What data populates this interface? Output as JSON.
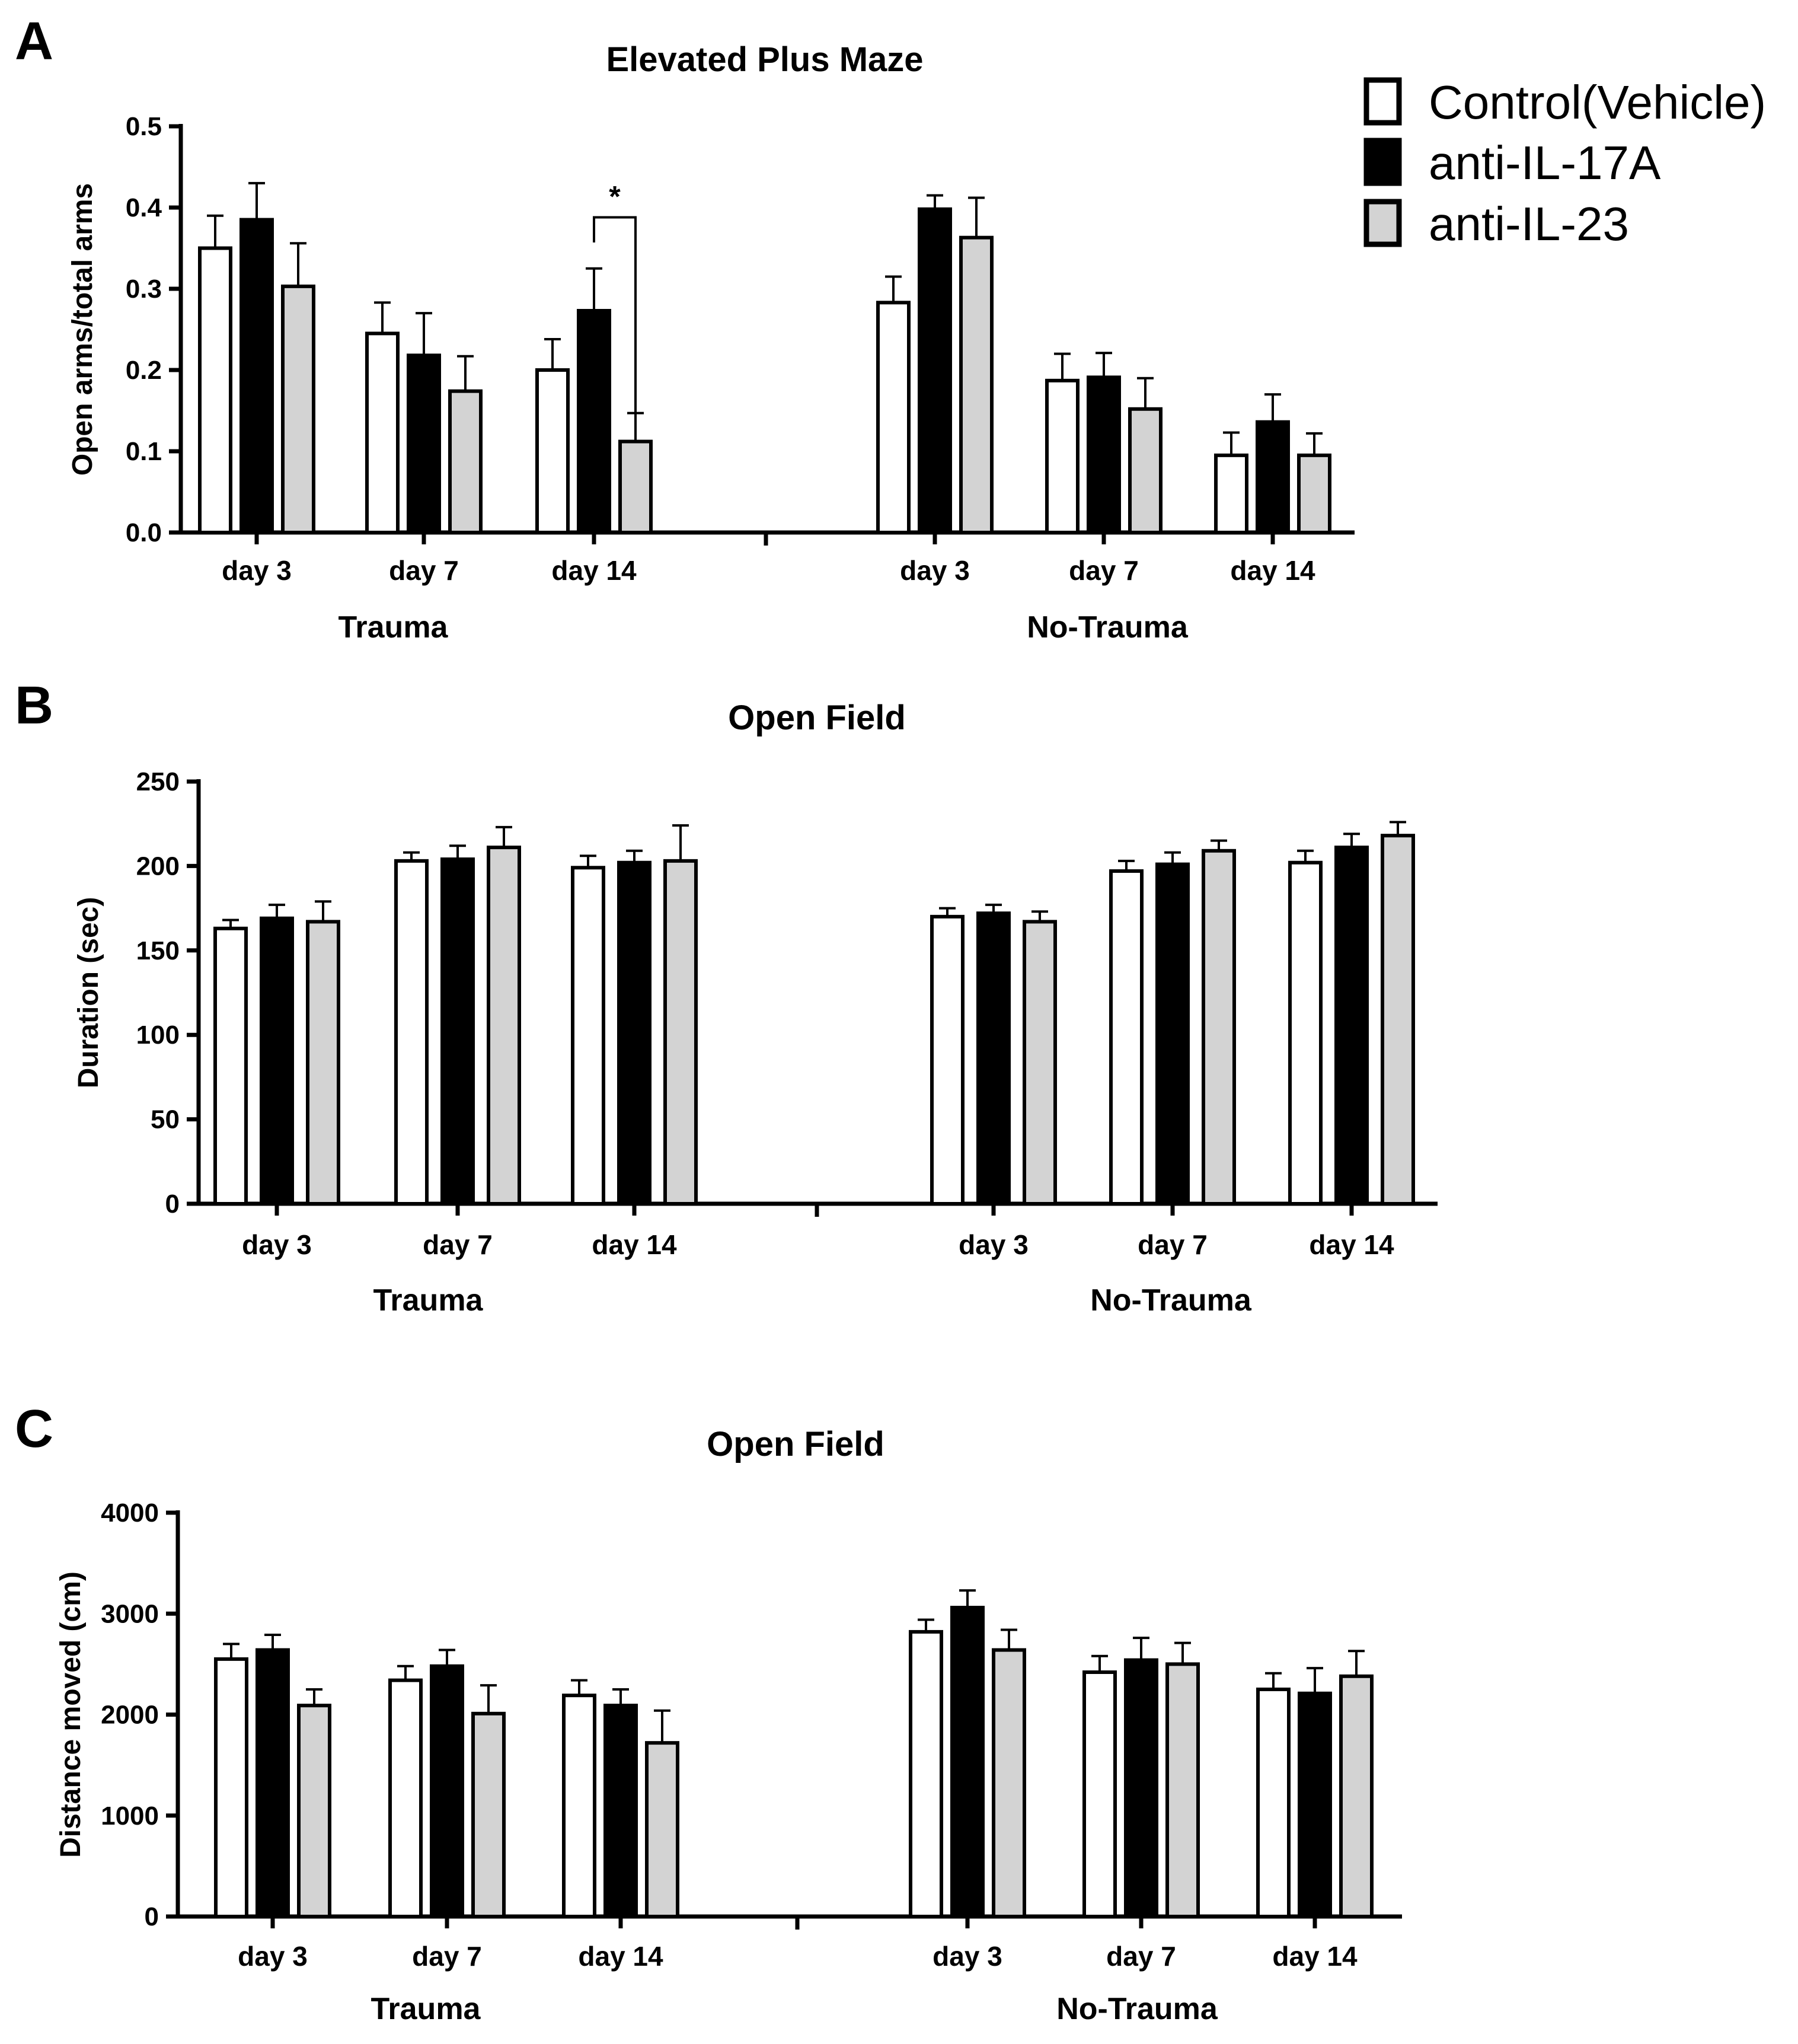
{
  "legend": {
    "items": [
      {
        "label": "Control(Vehicle)",
        "fill": "#ffffff"
      },
      {
        "label": "anti-IL-17A",
        "fill": "#000000"
      },
      {
        "label": "anti-IL-23",
        "fill": "#d3d3d3"
      }
    ]
  },
  "chart_data": [
    {
      "panel": "A",
      "type": "bar",
      "title": "Elevated Plus Maze",
      "xlabel": "",
      "ylabel": "Open arms/total arms",
      "ylim": [
        0,
        0.5
      ],
      "yticks": [
        "0.0",
        "0.1",
        "0.2",
        "0.3",
        "0.4",
        "0.5"
      ],
      "groups": [
        "Trauma",
        "No-Trauma"
      ],
      "categories": [
        "day 3",
        "day 7",
        "day 14",
        "day 3",
        "day 7",
        "day 14"
      ],
      "series": [
        {
          "name": "Control(Vehicle)",
          "values": [
            0.35,
            0.245,
            0.2,
            0.283,
            0.187,
            0.095
          ],
          "errors": [
            0.04,
            0.038,
            0.038,
            0.032,
            0.033,
            0.028
          ]
        },
        {
          "name": "anti-IL-17A",
          "values": [
            0.385,
            0.218,
            0.273,
            0.398,
            0.191,
            0.136
          ],
          "errors": [
            0.045,
            0.052,
            0.052,
            0.017,
            0.03,
            0.034
          ]
        },
        {
          "name": "anti-IL-23",
          "values": [
            0.303,
            0.174,
            0.112,
            0.363,
            0.152,
            0.095
          ],
          "errors": [
            0.053,
            0.043,
            0.035,
            0.049,
            0.038,
            0.027
          ]
        }
      ],
      "annotation": {
        "text": "*",
        "group": "Trauma",
        "category": "day 14"
      }
    },
    {
      "panel": "B",
      "type": "bar",
      "title": "Open Field",
      "xlabel": "",
      "ylabel": "Duration (sec)",
      "ylim": [
        0,
        250
      ],
      "yticks": [
        "0",
        "50",
        "100",
        "150",
        "200",
        "250"
      ],
      "groups": [
        "Trauma",
        "No-Trauma"
      ],
      "categories": [
        "day 3",
        "day 7",
        "day 14",
        "day 3",
        "day 7",
        "day 14"
      ],
      "series": [
        {
          "name": "Control(Vehicle)",
          "values": [
            163,
            203,
            199,
            170,
            197,
            202
          ],
          "errors": [
            5,
            5,
            7,
            5,
            6,
            7
          ]
        },
        {
          "name": "anti-IL-17A",
          "values": [
            169,
            204,
            202,
            172,
            201,
            211
          ],
          "errors": [
            8,
            8,
            7,
            5,
            7,
            8
          ]
        },
        {
          "name": "anti-IL-23",
          "values": [
            167,
            211,
            203,
            167,
            209,
            218
          ],
          "errors": [
            12,
            12,
            21,
            6,
            6,
            8
          ]
        }
      ]
    },
    {
      "panel": "C",
      "type": "bar",
      "title": "Open Field",
      "xlabel": "",
      "ylabel": "Distance moved (cm)",
      "ylim": [
        0,
        4000
      ],
      "yticks": [
        "0",
        "1000",
        "2000",
        "3000",
        "4000"
      ],
      "groups": [
        "Trauma",
        "No-Trauma"
      ],
      "categories": [
        "day 3",
        "day 7",
        "day 14",
        "day 3",
        "day 7",
        "day 14"
      ],
      "series": [
        {
          "name": "Control(Vehicle)",
          "values": [
            2550,
            2340,
            2190,
            2820,
            2420,
            2250
          ],
          "errors": [
            150,
            140,
            150,
            120,
            160,
            160
          ]
        },
        {
          "name": "anti-IL-17A",
          "values": [
            2640,
            2480,
            2090,
            3060,
            2540,
            2210
          ],
          "errors": [
            150,
            160,
            160,
            170,
            220,
            250
          ]
        },
        {
          "name": "anti-IL-23",
          "values": [
            2090,
            2010,
            1720,
            2640,
            2500,
            2380
          ],
          "errors": [
            160,
            280,
            320,
            200,
            210,
            250
          ]
        }
      ]
    }
  ]
}
